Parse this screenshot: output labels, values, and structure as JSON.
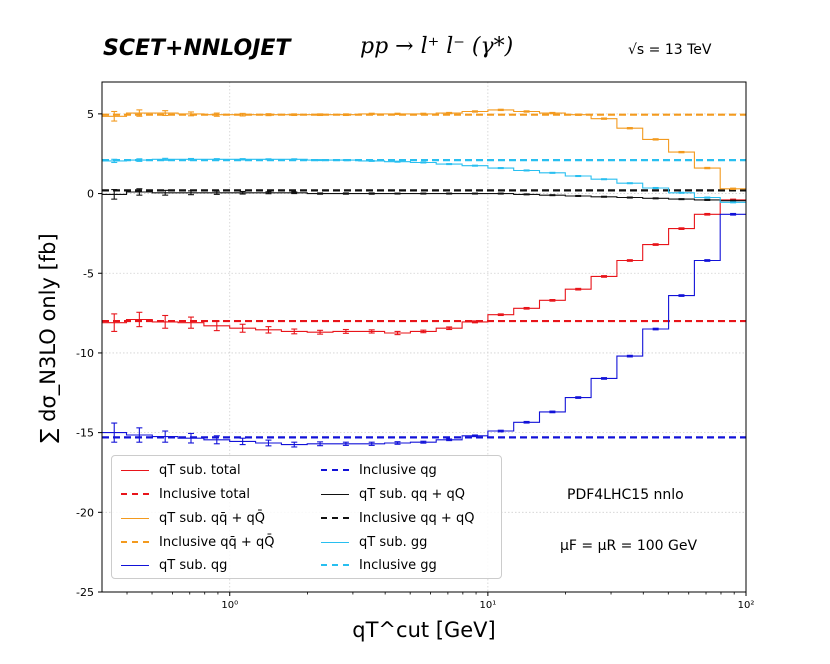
{
  "header": {
    "left": "SCET+NNLOJET",
    "center": "pp → l⁺ l⁻ (γ*)",
    "right": "√s = 13 TeV"
  },
  "annotations": {
    "pdf": "PDF4LHC15 nnlo",
    "scale": "μF = μR = 100 GeV"
  },
  "colors": {
    "total": "#e8141a",
    "qqbar": "#f39a1e",
    "qg": "#1212d8",
    "qq": "#111111",
    "gg": "#28bff0",
    "grid": "#d0d0d0"
  },
  "legend": {
    "items": [
      {
        "label": "qT sub. total",
        "series": "total",
        "style": "solid"
      },
      {
        "label": "Inclusive total",
        "series": "total",
        "style": "dashed"
      },
      {
        "label": "qT sub. qq̄ + qQ̄",
        "series": "qqbar",
        "style": "solid"
      },
      {
        "label": "Inclusive qq̄ + qQ̄",
        "series": "qqbar",
        "style": "dashed"
      },
      {
        "label": "qT sub. qg",
        "series": "qg",
        "style": "solid"
      },
      {
        "label": "Inclusive qg",
        "series": "qg",
        "style": "dashed"
      },
      {
        "label": "qT sub. qq + qQ",
        "series": "qq",
        "style": "solid"
      },
      {
        "label": "Inclusive qq + qQ",
        "series": "qq",
        "style": "dashed"
      },
      {
        "label": "qT sub. gg",
        "series": "gg",
        "style": "solid"
      },
      {
        "label": "Inclusive gg",
        "series": "gg",
        "style": "dashed"
      }
    ]
  },
  "chart_data": {
    "type": "line",
    "title": "SCET+NNLOJET",
    "xlabel": "qT^cut [GeV]",
    "ylabel": "∑ dσ_N3LO only [fb]",
    "xscale": "log",
    "xlim": [
      0.32,
      100
    ],
    "ylim": [
      -25,
      7
    ],
    "grid": true,
    "xticks": [
      {
        "value": 1,
        "label": "10⁰"
      },
      {
        "value": 10,
        "label": "10¹"
      },
      {
        "value": 100,
        "label": "10²"
      }
    ],
    "yticks": [
      -25,
      -20,
      -15,
      -10,
      -5,
      0,
      5
    ],
    "bin_edges": [
      0.32,
      0.398,
      0.501,
      0.631,
      0.794,
      1.0,
      1.259,
      1.585,
      1.995,
      2.512,
      3.162,
      3.981,
      5.012,
      6.31,
      7.943,
      10.0,
      12.589,
      15.849,
      19.953,
      25.119,
      31.623,
      39.811,
      50.119,
      63.096,
      79.433,
      100.0
    ],
    "series": [
      {
        "name": "qT sub. total",
        "key": "total",
        "values": [
          -8.1,
          -7.9,
          -8.05,
          -8.1,
          -8.3,
          -8.45,
          -8.55,
          -8.65,
          -8.7,
          -8.65,
          -8.65,
          -8.75,
          -8.65,
          -8.45,
          -8.05,
          -7.6,
          -7.2,
          -6.7,
          -6.0,
          -5.2,
          -4.2,
          -3.2,
          -2.2,
          -1.3,
          -0.4
        ],
        "errors": [
          0.55,
          0.45,
          0.4,
          0.35,
          0.3,
          0.25,
          0.2,
          0.15,
          0.12,
          0.12,
          0.1,
          0.1,
          0.08,
          0.08,
          0.06,
          0.05,
          0.05,
          0.05,
          0.05,
          0.05,
          0.05,
          0.05,
          0.05,
          0.05,
          0.05
        ]
      },
      {
        "name": "qT sub. qq̄ + qQ̄",
        "key": "qqbar",
        "values": [
          4.85,
          5.05,
          5.05,
          5.0,
          4.95,
          4.95,
          4.95,
          4.95,
          4.95,
          4.95,
          5.0,
          5.0,
          5.0,
          5.05,
          5.15,
          5.25,
          5.15,
          5.05,
          4.95,
          4.7,
          4.1,
          3.4,
          2.6,
          1.6,
          0.3
        ],
        "errors": [
          0.3,
          0.2,
          0.15,
          0.12,
          0.1,
          0.08,
          0.06,
          0.05,
          0.05,
          0.05,
          0.04,
          0.04,
          0.04,
          0.04,
          0.04,
          0.04,
          0.04,
          0.04,
          0.04,
          0.04,
          0.04,
          0.04,
          0.04,
          0.04,
          0.04
        ]
      },
      {
        "name": "qT sub. qg",
        "key": "qg",
        "values": [
          -15.0,
          -15.15,
          -15.25,
          -15.35,
          -15.45,
          -15.55,
          -15.65,
          -15.75,
          -15.7,
          -15.7,
          -15.7,
          -15.65,
          -15.6,
          -15.45,
          -15.2,
          -14.9,
          -14.35,
          -13.7,
          -12.8,
          -11.6,
          -10.2,
          -8.5,
          -6.4,
          -4.2,
          -1.3
        ],
        "errors": [
          0.6,
          0.45,
          0.35,
          0.3,
          0.25,
          0.2,
          0.18,
          0.15,
          0.12,
          0.1,
          0.1,
          0.08,
          0.06,
          0.05,
          0.05,
          0.05,
          0.05,
          0.05,
          0.05,
          0.05,
          0.05,
          0.05,
          0.05,
          0.05,
          0.05
        ]
      },
      {
        "name": "qT sub. qq + qQ",
        "key": "qq",
        "values": [
          -0.05,
          0.1,
          0.05,
          0.05,
          0.05,
          0.05,
          0.05,
          0.05,
          0.0,
          0.0,
          0.0,
          0.0,
          0.0,
          0.0,
          0.0,
          0.0,
          -0.05,
          -0.1,
          -0.15,
          -0.2,
          -0.25,
          -0.3,
          -0.35,
          -0.4,
          -0.45
        ],
        "errors": [
          0.3,
          0.2,
          0.15,
          0.12,
          0.1,
          0.08,
          0.06,
          0.05,
          0.04,
          0.04,
          0.04,
          0.03,
          0.03,
          0.03,
          0.03,
          0.03,
          0.03,
          0.03,
          0.03,
          0.03,
          0.03,
          0.03,
          0.03,
          0.03,
          0.03
        ]
      },
      {
        "name": "qT sub. gg",
        "key": "gg",
        "values": [
          2.05,
          2.1,
          2.15,
          2.15,
          2.15,
          2.15,
          2.15,
          2.15,
          2.1,
          2.1,
          2.05,
          2.0,
          1.95,
          1.85,
          1.75,
          1.6,
          1.45,
          1.3,
          1.1,
          0.9,
          0.65,
          0.35,
          0.05,
          -0.25,
          -0.55
        ],
        "errors": [
          0.1,
          0.08,
          0.06,
          0.05,
          0.04,
          0.04,
          0.03,
          0.03,
          0.03,
          0.03,
          0.03,
          0.03,
          0.03,
          0.03,
          0.03,
          0.03,
          0.03,
          0.03,
          0.03,
          0.03,
          0.03,
          0.03,
          0.03,
          0.03,
          0.03
        ]
      }
    ],
    "inclusive": [
      {
        "name": "Inclusive total",
        "key": "total",
        "value": -8.0
      },
      {
        "name": "Inclusive qq̄ + qQ̄",
        "key": "qqbar",
        "value": 4.95
      },
      {
        "name": "Inclusive qg",
        "key": "qg",
        "value": -15.3
      },
      {
        "name": "Inclusive qq + qQ",
        "key": "qq",
        "value": 0.2
      },
      {
        "name": "Inclusive gg",
        "key": "gg",
        "value": 2.1
      }
    ]
  }
}
